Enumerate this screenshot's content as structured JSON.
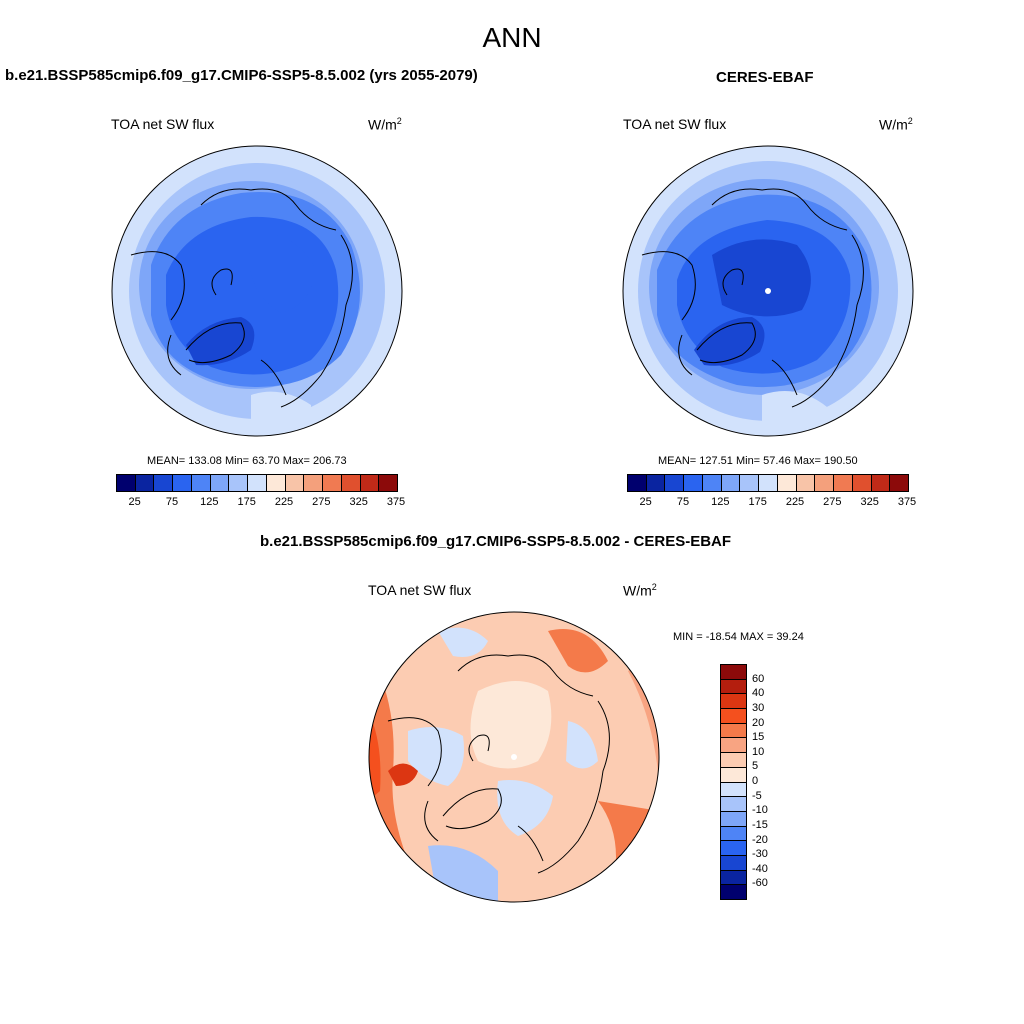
{
  "title": "ANN",
  "panels": {
    "model": {
      "title": "b.e21.BSSP585cmip6.f09_g17.CMIP6-SSP5-8.5.002 (yrs 2055-2079)",
      "variable": "TOA net SW flux",
      "units_base": "W/m",
      "units_exp": "2",
      "stats": "MEAN= 133.08  Min=  63.70  Max= 206.73"
    },
    "obs": {
      "title": "CERES-EBAF",
      "variable": "TOA net SW flux",
      "units_base": "W/m",
      "units_exp": "2",
      "stats": "MEAN= 127.51  Min=  57.46  Max= 190.50"
    },
    "diff": {
      "title": "b.e21.BSSP585cmip6.f09_g17.CMIP6-SSP5-8.5.002 - CERES-EBAF",
      "variable": "TOA net SW flux",
      "units_base": "W/m",
      "units_exp": "2",
      "stats": "MIN = -18.54 MAX =  39.24"
    }
  },
  "colorbar_main": {
    "colors": [
      "#00006e",
      "#0a24a0",
      "#1846d2",
      "#2a64f0",
      "#4e84f6",
      "#7ea6f8",
      "#a8c4fa",
      "#d2e2fc",
      "#fde8d8",
      "#f8c4a8",
      "#f4a07c",
      "#f07a52",
      "#e0502e",
      "#c02a18",
      "#8c0a0a"
    ],
    "ticks": [
      "25",
      "75",
      "125",
      "175",
      "225",
      "275",
      "325",
      "375"
    ]
  },
  "colorbar_diff": {
    "colors": [
      "#8c0a0a",
      "#b41e0e",
      "#dc3612",
      "#f4501e",
      "#f47a4a",
      "#f8a482",
      "#fcccb2",
      "#fde8d8",
      "#d2e2fc",
      "#a8c4fa",
      "#7ea6f8",
      "#4e84f6",
      "#2a64f0",
      "#1846d2",
      "#0a24a0",
      "#00006e"
    ],
    "ticks": [
      "60",
      "40",
      "30",
      "20",
      "15",
      "10",
      "5",
      "0",
      "-5",
      "-10",
      "-15",
      "-20",
      "-30",
      "-40",
      "-60"
    ]
  }
}
